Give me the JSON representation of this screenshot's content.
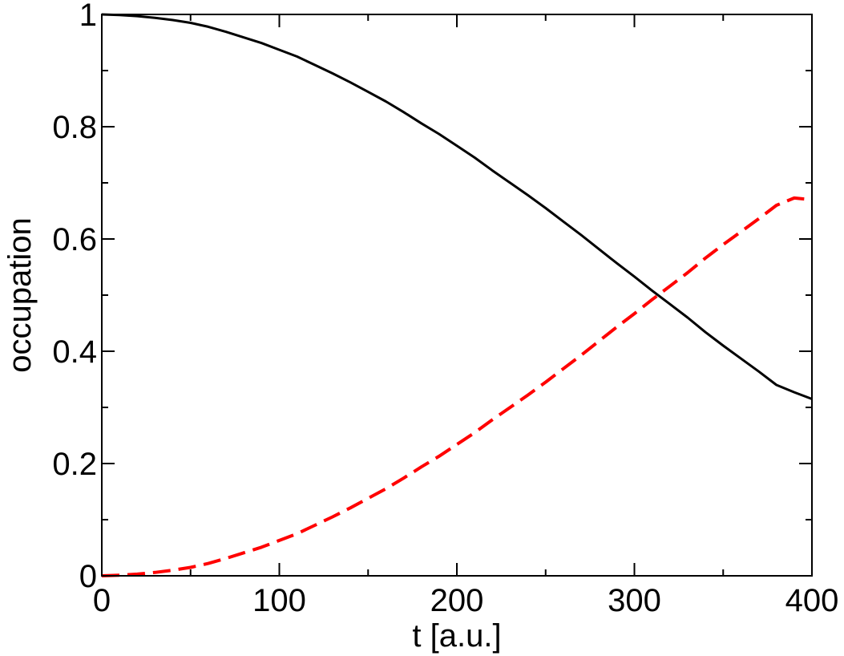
{
  "chart_data": {
    "type": "line",
    "title": "",
    "xlabel": "t [a.u.]",
    "ylabel": "occupation",
    "xlim": [
      0,
      400
    ],
    "ylim": [
      0,
      1
    ],
    "xticks": [
      0,
      100,
      200,
      300,
      400
    ],
    "yticks": [
      0,
      0.2,
      0.4,
      0.6,
      0.8,
      1
    ],
    "xtick_labels": [
      "0",
      "100",
      "200",
      "300",
      "400"
    ],
    "ytick_labels": [
      "0",
      "0.2",
      "0.4",
      "0.6",
      "0.8",
      "1"
    ],
    "x_minor_step": 50,
    "y_minor_step": 0.1,
    "grid": false,
    "legend": "none",
    "series": [
      {
        "color": "#000000",
        "style": "solid",
        "x": [
          0,
          10,
          20,
          30,
          40,
          50,
          60,
          70,
          80,
          90,
          100,
          110,
          120,
          130,
          140,
          150,
          160,
          170,
          180,
          190,
          200,
          210,
          220,
          230,
          240,
          250,
          260,
          270,
          280,
          290,
          300,
          310,
          320,
          330,
          340,
          350,
          360,
          370,
          380,
          390,
          400
        ],
        "y": [
          1.0,
          0.999,
          0.997,
          0.994,
          0.99,
          0.985,
          0.978,
          0.969,
          0.959,
          0.949,
          0.937,
          0.925,
          0.91,
          0.895,
          0.879,
          0.862,
          0.845,
          0.826,
          0.806,
          0.787,
          0.766,
          0.745,
          0.722,
          0.7,
          0.678,
          0.655,
          0.631,
          0.607,
          0.582,
          0.557,
          0.533,
          0.508,
          0.484,
          0.46,
          0.434,
          0.41,
          0.387,
          0.364,
          0.34,
          0.327,
          0.315
        ]
      },
      {
        "color": "#ff0000",
        "style": "dashed",
        "x": [
          0,
          10,
          20,
          30,
          40,
          50,
          60,
          70,
          80,
          90,
          100,
          110,
          120,
          130,
          140,
          150,
          160,
          170,
          180,
          190,
          200,
          210,
          220,
          230,
          240,
          250,
          260,
          270,
          280,
          290,
          300,
          310,
          320,
          330,
          340,
          350,
          360,
          370,
          380,
          390,
          400
        ],
        "y": [
          0.0,
          0.001,
          0.003,
          0.006,
          0.01,
          0.015,
          0.022,
          0.031,
          0.041,
          0.051,
          0.063,
          0.075,
          0.09,
          0.105,
          0.121,
          0.138,
          0.155,
          0.174,
          0.194,
          0.213,
          0.234,
          0.255,
          0.278,
          0.3,
          0.322,
          0.345,
          0.369,
          0.393,
          0.418,
          0.443,
          0.467,
          0.492,
          0.516,
          0.54,
          0.566,
          0.59,
          0.613,
          0.636,
          0.66,
          0.673,
          0.67
        ]
      }
    ]
  }
}
